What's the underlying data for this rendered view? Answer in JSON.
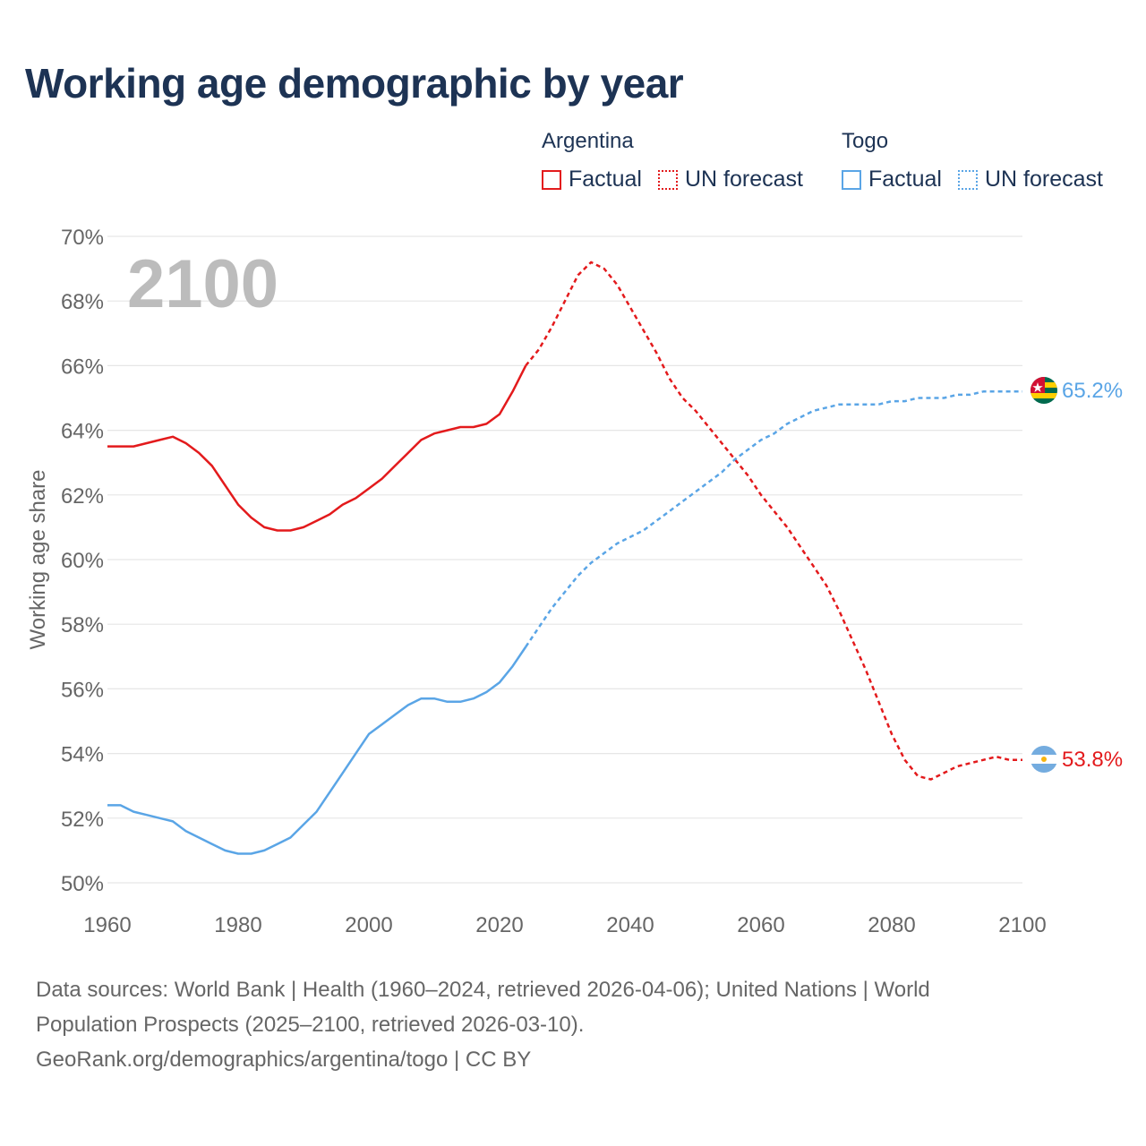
{
  "title": "Working age demographic by year",
  "year_overlay": "2100",
  "legend": {
    "groups": [
      {
        "country": "Argentina",
        "factual": "Factual",
        "forecast": "UN forecast",
        "color": "#e31a1c"
      },
      {
        "country": "Togo",
        "factual": "Factual",
        "forecast": "UN forecast",
        "color": "#5aa5e6"
      }
    ]
  },
  "source": {
    "line1": "Data sources: World Bank | Health (1960–2024, retrieved 2026-04-06); United Nations | World",
    "line2": "Population Prospects (2025–2100, retrieved 2026-03-10).",
    "line3": "GeoRank.org/demographics/argentina/togo | CC BY"
  },
  "chart_data": {
    "type": "line",
    "title": "Working age demographic by year",
    "xlabel": "",
    "ylabel": "Working age share",
    "xlim": [
      1960,
      2100
    ],
    "ylim": [
      50,
      70
    ],
    "x_ticks": [
      1960,
      1980,
      2000,
      2020,
      2040,
      2060,
      2080,
      2100
    ],
    "y_ticks": [
      50,
      52,
      54,
      56,
      58,
      60,
      62,
      64,
      66,
      68,
      70
    ],
    "y_tick_labels": [
      "50%",
      "52%",
      "54%",
      "56%",
      "58%",
      "60%",
      "62%",
      "64%",
      "66%",
      "68%",
      "70%"
    ],
    "x_tick_labels": [
      "1960",
      "1980",
      "2000",
      "2020",
      "2040",
      "2060",
      "2080",
      "2100"
    ],
    "grid": true,
    "series": [
      {
        "name": "Argentina",
        "color": "#e31a1c",
        "end_label": "53.8%",
        "flag_icon": "argentina-flag-icon",
        "factual": [
          [
            1960,
            63.5
          ],
          [
            1964,
            63.5
          ],
          [
            1966,
            63.6
          ],
          [
            1968,
            63.7
          ],
          [
            1970,
            63.8
          ],
          [
            1972,
            63.6
          ],
          [
            1974,
            63.3
          ],
          [
            1976,
            62.9
          ],
          [
            1978,
            62.3
          ],
          [
            1980,
            61.7
          ],
          [
            1982,
            61.3
          ],
          [
            1984,
            61.0
          ],
          [
            1986,
            60.9
          ],
          [
            1988,
            60.9
          ],
          [
            1990,
            61.0
          ],
          [
            1992,
            61.2
          ],
          [
            1994,
            61.4
          ],
          [
            1996,
            61.7
          ],
          [
            1998,
            61.9
          ],
          [
            2000,
            62.2
          ],
          [
            2002,
            62.5
          ],
          [
            2004,
            62.9
          ],
          [
            2006,
            63.3
          ],
          [
            2008,
            63.7
          ],
          [
            2010,
            63.9
          ],
          [
            2012,
            64.0
          ],
          [
            2014,
            64.1
          ],
          [
            2016,
            64.1
          ],
          [
            2018,
            64.2
          ],
          [
            2020,
            64.5
          ],
          [
            2022,
            65.2
          ],
          [
            2024,
            66.0
          ]
        ],
        "forecast": [
          [
            2024,
            66.0
          ],
          [
            2026,
            66.5
          ],
          [
            2028,
            67.2
          ],
          [
            2030,
            68.0
          ],
          [
            2032,
            68.8
          ],
          [
            2034,
            69.2
          ],
          [
            2036,
            69.0
          ],
          [
            2038,
            68.5
          ],
          [
            2040,
            67.8
          ],
          [
            2042,
            67.1
          ],
          [
            2044,
            66.4
          ],
          [
            2046,
            65.6
          ],
          [
            2048,
            65.0
          ],
          [
            2050,
            64.6
          ],
          [
            2052,
            64.1
          ],
          [
            2054,
            63.6
          ],
          [
            2056,
            63.1
          ],
          [
            2058,
            62.6
          ],
          [
            2060,
            62.0
          ],
          [
            2062,
            61.5
          ],
          [
            2064,
            61.0
          ],
          [
            2066,
            60.4
          ],
          [
            2068,
            59.8
          ],
          [
            2070,
            59.2
          ],
          [
            2072,
            58.4
          ],
          [
            2074,
            57.5
          ],
          [
            2076,
            56.6
          ],
          [
            2078,
            55.6
          ],
          [
            2080,
            54.6
          ],
          [
            2082,
            53.8
          ],
          [
            2084,
            53.3
          ],
          [
            2086,
            53.2
          ],
          [
            2088,
            53.4
          ],
          [
            2090,
            53.6
          ],
          [
            2092,
            53.7
          ],
          [
            2094,
            53.8
          ],
          [
            2096,
            53.9
          ],
          [
            2098,
            53.8
          ],
          [
            2100,
            53.8
          ]
        ]
      },
      {
        "name": "Togo",
        "color": "#5aa5e6",
        "end_label": "65.2%",
        "flag_icon": "togo-flag-icon",
        "factual": [
          [
            1960,
            52.4
          ],
          [
            1962,
            52.4
          ],
          [
            1964,
            52.2
          ],
          [
            1966,
            52.1
          ],
          [
            1968,
            52.0
          ],
          [
            1970,
            51.9
          ],
          [
            1972,
            51.6
          ],
          [
            1974,
            51.4
          ],
          [
            1976,
            51.2
          ],
          [
            1978,
            51.0
          ],
          [
            1980,
            50.9
          ],
          [
            1982,
            50.9
          ],
          [
            1984,
            51.0
          ],
          [
            1986,
            51.2
          ],
          [
            1988,
            51.4
          ],
          [
            1990,
            51.8
          ],
          [
            1992,
            52.2
          ],
          [
            1994,
            52.8
          ],
          [
            1996,
            53.4
          ],
          [
            1998,
            54.0
          ],
          [
            2000,
            54.6
          ],
          [
            2002,
            54.9
          ],
          [
            2004,
            55.2
          ],
          [
            2006,
            55.5
          ],
          [
            2008,
            55.7
          ],
          [
            2010,
            55.7
          ],
          [
            2012,
            55.6
          ],
          [
            2014,
            55.6
          ],
          [
            2016,
            55.7
          ],
          [
            2018,
            55.9
          ],
          [
            2020,
            56.2
          ],
          [
            2022,
            56.7
          ],
          [
            2024,
            57.3
          ]
        ],
        "forecast": [
          [
            2024,
            57.3
          ],
          [
            2026,
            57.9
          ],
          [
            2028,
            58.5
          ],
          [
            2030,
            59.0
          ],
          [
            2032,
            59.5
          ],
          [
            2034,
            59.9
          ],
          [
            2036,
            60.2
          ],
          [
            2038,
            60.5
          ],
          [
            2040,
            60.7
          ],
          [
            2042,
            60.9
          ],
          [
            2044,
            61.2
          ],
          [
            2046,
            61.5
          ],
          [
            2048,
            61.8
          ],
          [
            2050,
            62.1
          ],
          [
            2052,
            62.4
          ],
          [
            2054,
            62.7
          ],
          [
            2056,
            63.1
          ],
          [
            2058,
            63.4
          ],
          [
            2060,
            63.7
          ],
          [
            2062,
            63.9
          ],
          [
            2064,
            64.2
          ],
          [
            2066,
            64.4
          ],
          [
            2068,
            64.6
          ],
          [
            2070,
            64.7
          ],
          [
            2072,
            64.8
          ],
          [
            2074,
            64.8
          ],
          [
            2076,
            64.8
          ],
          [
            2078,
            64.8
          ],
          [
            2080,
            64.9
          ],
          [
            2082,
            64.9
          ],
          [
            2084,
            65.0
          ],
          [
            2086,
            65.0
          ],
          [
            2088,
            65.0
          ],
          [
            2090,
            65.1
          ],
          [
            2092,
            65.1
          ],
          [
            2094,
            65.2
          ],
          [
            2096,
            65.2
          ],
          [
            2098,
            65.2
          ],
          [
            2100,
            65.2
          ]
        ]
      }
    ]
  }
}
